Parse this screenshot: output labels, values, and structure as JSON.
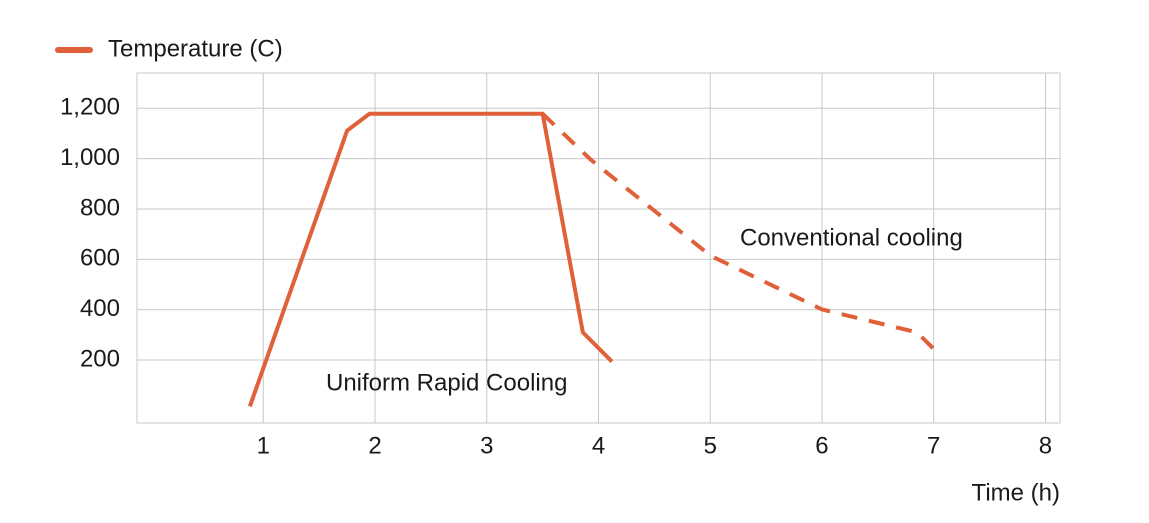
{
  "chart_data": {
    "type": "line",
    "x_label": "Time (h)",
    "xlim": [
      -0.13,
      8.13
    ],
    "xticks": [
      1,
      2,
      3,
      4,
      5,
      6,
      7,
      8
    ],
    "ylim": [
      -50,
      1340
    ],
    "yticks": [
      200,
      400,
      600,
      800,
      {
        "value": 1000,
        "label": "1,000"
      },
      {
        "value": 1200,
        "label": "1,200"
      }
    ],
    "grid": true,
    "legend": "top-left",
    "series": [
      {
        "name": "Temperature (C)",
        "color": "#e0603a",
        "dash": false,
        "x": [
          0.88,
          1.75,
          1.95,
          3.5,
          3.86,
          4.12
        ],
        "values": [
          16,
          1111,
          1178,
          1178,
          310,
          194
        ]
      },
      {
        "color": "#e0603a",
        "dash": true,
        "x": [
          3.5,
          3.93,
          5.0,
          6.0,
          6.85,
          7.06
        ],
        "values": [
          1178,
          996,
          615,
          401,
          310,
          218
        ]
      }
    ],
    "annotations": [
      "Uniform Rapid Cooling",
      "Conventional cooling"
    ]
  }
}
